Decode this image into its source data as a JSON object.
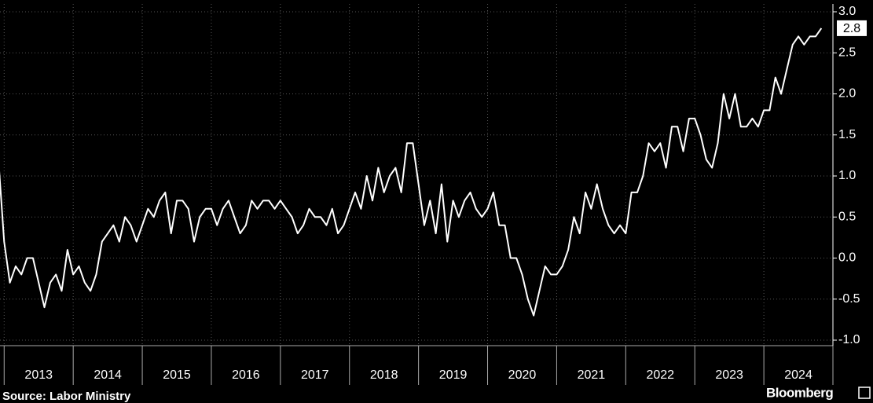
{
  "chart_data": {
    "type": "line",
    "source": "Source: Labor Ministry",
    "brand": "Bloomberg",
    "color": "#ffffff",
    "x": [
      2012.917,
      2013,
      2013.083,
      2013.167,
      2013.25,
      2013.333,
      2013.417,
      2013.5,
      2013.583,
      2013.667,
      2013.75,
      2013.833,
      2013.917,
      2014,
      2014.083,
      2014.167,
      2014.25,
      2014.333,
      2014.417,
      2014.5,
      2014.583,
      2014.667,
      2014.75,
      2014.833,
      2014.917,
      2015,
      2015.083,
      2015.167,
      2015.25,
      2015.333,
      2015.417,
      2015.5,
      2015.583,
      2015.667,
      2015.75,
      2015.833,
      2015.917,
      2016,
      2016.083,
      2016.167,
      2016.25,
      2016.333,
      2016.417,
      2016.5,
      2016.583,
      2016.667,
      2016.75,
      2016.833,
      2016.917,
      2017,
      2017.083,
      2017.167,
      2017.25,
      2017.333,
      2017.417,
      2017.5,
      2017.583,
      2017.667,
      2017.75,
      2017.833,
      2017.917,
      2018,
      2018.083,
      2018.167,
      2018.25,
      2018.333,
      2018.417,
      2018.5,
      2018.583,
      2018.667,
      2018.75,
      2018.833,
      2018.917,
      2019,
      2019.083,
      2019.167,
      2019.25,
      2019.333,
      2019.417,
      2019.5,
      2019.583,
      2019.667,
      2019.75,
      2019.833,
      2019.917,
      2020,
      2020.083,
      2020.167,
      2020.25,
      2020.333,
      2020.417,
      2020.5,
      2020.583,
      2020.667,
      2020.75,
      2020.833,
      2020.917,
      2021,
      2021.083,
      2021.167,
      2021.25,
      2021.333,
      2021.417,
      2021.5,
      2021.583,
      2021.667,
      2021.75,
      2021.833,
      2021.917,
      2022,
      2022.083,
      2022.167,
      2022.25,
      2022.333,
      2022.417,
      2022.5,
      2022.583,
      2022.667,
      2022.75,
      2022.833,
      2022.917,
      2023,
      2023.083,
      2023.167,
      2023.25,
      2023.333,
      2023.417,
      2023.5,
      2023.583,
      2023.667,
      2023.75,
      2023.833,
      2023.917,
      2024,
      2024.083,
      2024.167,
      2024.25,
      2024.333,
      2024.417,
      2024.5,
      2024.583,
      2024.667,
      2024.75,
      2024.833
    ],
    "values": [
      1.2,
      0.2,
      -0.3,
      -0.1,
      -0.2,
      0.0,
      0.0,
      -0.3,
      -0.6,
      -0.3,
      -0.2,
      -0.4,
      0.1,
      -0.2,
      -0.1,
      -0.3,
      -0.4,
      -0.2,
      0.2,
      0.3,
      0.4,
      0.2,
      0.5,
      0.4,
      0.2,
      0.4,
      0.6,
      0.5,
      0.7,
      0.8,
      0.3,
      0.7,
      0.7,
      0.6,
      0.2,
      0.5,
      0.6,
      0.6,
      0.4,
      0.6,
      0.7,
      0.5,
      0.3,
      0.4,
      0.7,
      0.6,
      0.7,
      0.7,
      0.6,
      0.7,
      0.6,
      0.5,
      0.3,
      0.4,
      0.6,
      0.5,
      0.5,
      0.4,
      0.6,
      0.3,
      0.4,
      0.6,
      0.8,
      0.6,
      1.0,
      0.7,
      1.1,
      0.8,
      1.0,
      1.1,
      0.8,
      1.4,
      1.4,
      0.9,
      0.4,
      0.7,
      0.3,
      0.9,
      0.2,
      0.7,
      0.5,
      0.7,
      0.8,
      0.6,
      0.5,
      0.6,
      0.8,
      0.4,
      0.4,
      0.0,
      0.0,
      -0.2,
      -0.5,
      -0.7,
      -0.4,
      -0.1,
      -0.2,
      -0.2,
      -0.1,
      0.1,
      0.5,
      0.3,
      0.8,
      0.6,
      0.9,
      0.6,
      0.4,
      0.3,
      0.4,
      0.3,
      0.8,
      0.8,
      1.0,
      1.4,
      1.3,
      1.4,
      1.1,
      1.6,
      1.6,
      1.3,
      1.7,
      1.7,
      1.5,
      1.2,
      1.1,
      1.4,
      2.0,
      1.7,
      2.0,
      1.6,
      1.6,
      1.7,
      1.6,
      1.8,
      1.8,
      2.2,
      2.0,
      2.3,
      2.6,
      2.7,
      2.6,
      2.7,
      2.7,
      2.8
    ],
    "xlim": [
      2012.94,
      2025.0
    ],
    "xticks": [
      2013,
      2014,
      2015,
      2016,
      2017,
      2018,
      2019,
      2020,
      2021,
      2022,
      2023,
      2024,
      2025
    ],
    "period_labels": [
      "2013",
      "2014",
      "2015",
      "2016",
      "2017",
      "2018",
      "2019",
      "2020",
      "2021",
      "2022",
      "2023",
      "2024"
    ],
    "ylim": [
      -1.0,
      3.0
    ],
    "yticks": [
      {
        "value": -1,
        "label": "-1.0"
      },
      -0.5,
      {
        "value": 0,
        "label": "0.0"
      },
      0.5,
      {
        "value": 1,
        "label": "1.0"
      },
      1.5,
      {
        "value": 2,
        "label": "2.0"
      },
      2.5,
      {
        "value": 3,
        "label": "3.0"
      }
    ],
    "grid": true
  }
}
